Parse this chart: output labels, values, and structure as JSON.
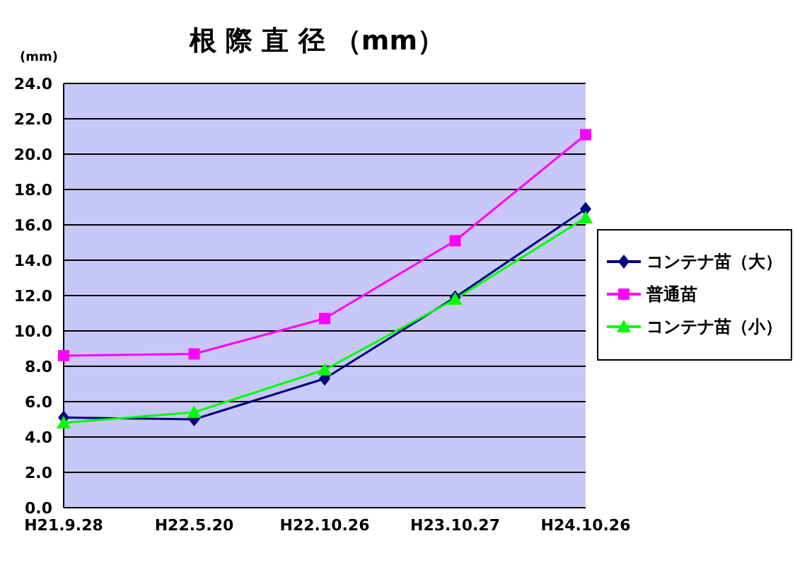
{
  "chart_data": {
    "type": "line",
    "title": "根 際 直 径 （mm）",
    "ylabel": "(mm)",
    "categories": [
      "H21.9.28",
      "H22.5.20",
      "H22.10.26",
      "H23.10.27",
      "H24.10.26"
    ],
    "series": [
      {
        "name": "コンテナ苗（大）",
        "color": "#000080",
        "marker": "diamond",
        "values": [
          5.1,
          5.0,
          7.3,
          11.9,
          16.9
        ]
      },
      {
        "name": "普通苗",
        "color": "#ff00ff",
        "marker": "square",
        "values": [
          8.6,
          8.7,
          10.7,
          15.1,
          21.1
        ]
      },
      {
        "name": "コンテナ苗（小）",
        "color": "#00ff00",
        "marker": "triangle",
        "values": [
          4.8,
          5.4,
          7.8,
          11.8,
          16.4
        ]
      }
    ],
    "ylim": [
      0,
      24
    ],
    "yticks": [
      {
        "value": 0,
        "label": "0.0"
      },
      {
        "value": 2,
        "label": "2.0"
      },
      {
        "value": 4,
        "label": "4.0"
      },
      {
        "value": 6,
        "label": "6.0"
      },
      {
        "value": 8,
        "label": "8.0"
      },
      {
        "value": 10,
        "label": "10.0"
      },
      {
        "value": 12,
        "label": "12.0"
      },
      {
        "value": 14,
        "label": "14.0"
      },
      {
        "value": 16,
        "label": "16.0"
      },
      {
        "value": 18,
        "label": "18.0"
      },
      {
        "value": 20,
        "label": "20.0"
      },
      {
        "value": 22,
        "label": "22.0"
      },
      {
        "value": 24,
        "label": "24.0"
      }
    ],
    "grid": "y",
    "legend": "right"
  }
}
